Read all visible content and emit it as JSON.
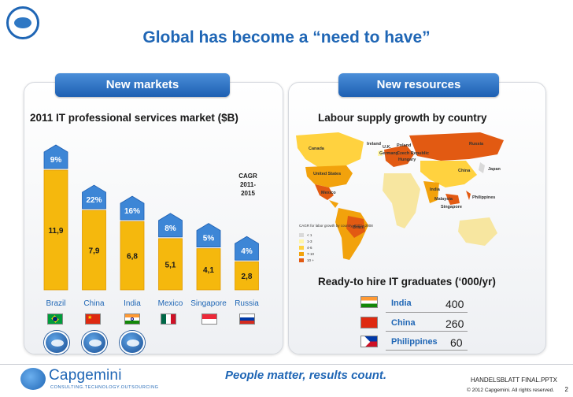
{
  "slide": {
    "title": "Global has become a “need to have”"
  },
  "left_panel": {
    "header": "New markets",
    "subtitle": "2011 IT professional services market ($B)",
    "cagr_label_lines": [
      "CAGR",
      "2011-",
      "2015"
    ]
  },
  "right_panel": {
    "header": "New resources",
    "map_title": "Labour supply growth by country",
    "map_labels": [
      "Canada",
      "United States",
      "Mexico",
      "Brazil",
      "Ireland",
      "U.K.",
      "Poland",
      "Germany",
      "Czech Republic",
      "Hungary",
      "Russia",
      "China",
      "Japan",
      "India",
      "Malaysia",
      "Philippines",
      "Singapore"
    ],
    "map_legend": {
      "title": "CAGR for labor growth by country, 2003 - 2008",
      "items": [
        {
          "label": "< 1",
          "color": "#d9d9d9"
        },
        {
          "label": "1-3",
          "color": "#fff6a8"
        },
        {
          "label": "4-6",
          "color": "#ffd23f"
        },
        {
          "label": "7-10",
          "color": "#f2a20c"
        },
        {
          "label": "10 +",
          "color": "#e25a12"
        }
      ]
    },
    "graduates_title": "Ready-to hire IT graduates (‘000/yr)",
    "graduates": [
      {
        "country": "India",
        "value": "400",
        "flag": "india-flag"
      },
      {
        "country": "China",
        "value": "260",
        "flag": "china-flag"
      },
      {
        "country": "Philippines",
        "value": "60",
        "flag": "philippines-flag"
      }
    ]
  },
  "chart_data": {
    "type": "bar",
    "title": "2011 IT professional services market ($B)",
    "categories": [
      "Brazil",
      "China",
      "India",
      "Mexico",
      "Singapore",
      "Russia"
    ],
    "values": [
      11.9,
      7.9,
      6.8,
      5.1,
      4.1,
      2.8
    ],
    "value_labels": [
      "11,9",
      "7,9",
      "6,8",
      "5,1",
      "4,1",
      "2,8"
    ],
    "cagr_labels": [
      "9%",
      "22%",
      "16%",
      "8%",
      "5%",
      "4%"
    ],
    "cagr": [
      9,
      22,
      16,
      8,
      5,
      4
    ],
    "colors": {
      "bar": "#f5b80d",
      "bar_dark": "#e29a00",
      "arrow": "#3d86d6",
      "arrow_dark": "#1d5fb2"
    }
  },
  "footer": {
    "logo_name": "Capgemini",
    "logo_sub": "CONSULTING.TECHNOLOGY.OUTSOURCING",
    "tagline": "People matter, results count.",
    "file_ref": "HANDELSBLATT FINAL.PPTX",
    "copyright": "© 2012 Capgemini. All rights reserved.",
    "page": "2"
  }
}
